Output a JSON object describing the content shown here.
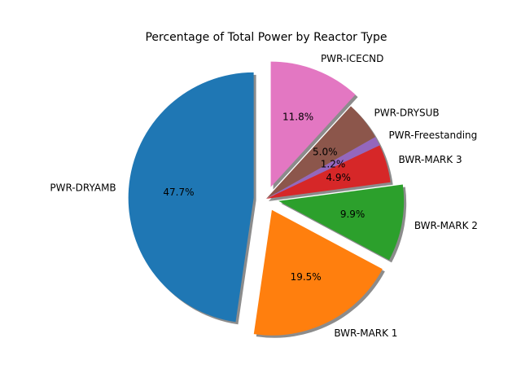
{
  "chart_data": {
    "type": "pie",
    "title": "Percentage of Total Power by Reactor Type",
    "start_angle_deg": 90,
    "direction": "counterclockwise",
    "shadow": true,
    "slices": [
      {
        "label": "PWR-DRYAMB",
        "value": 47.7,
        "pct_label": "47.7%",
        "color": "#1f77b4",
        "exploded": true
      },
      {
        "label": "BWR-MARK 1",
        "value": 19.5,
        "pct_label": "19.5%",
        "color": "#ff7f0e",
        "exploded": true
      },
      {
        "label": "BWR-MARK 2",
        "value": 9.9,
        "pct_label": "9.9%",
        "color": "#2ca02c",
        "exploded": true
      },
      {
        "label": "BWR-MARK 3",
        "value": 4.9,
        "pct_label": "4.9%",
        "color": "#d62728",
        "exploded": false
      },
      {
        "label": "PWR-Freestanding",
        "value": 1.2,
        "pct_label": "1.2%",
        "color": "#9467bd",
        "exploded": false
      },
      {
        "label": "PWR-DRYSUB",
        "value": 5.0,
        "pct_label": "5.0%",
        "color": "#8c564b",
        "exploded": false
      },
      {
        "label": "PWR-ICECND",
        "value": 11.8,
        "pct_label": "11.8%",
        "color": "#e377c2",
        "exploded": true
      }
    ]
  }
}
